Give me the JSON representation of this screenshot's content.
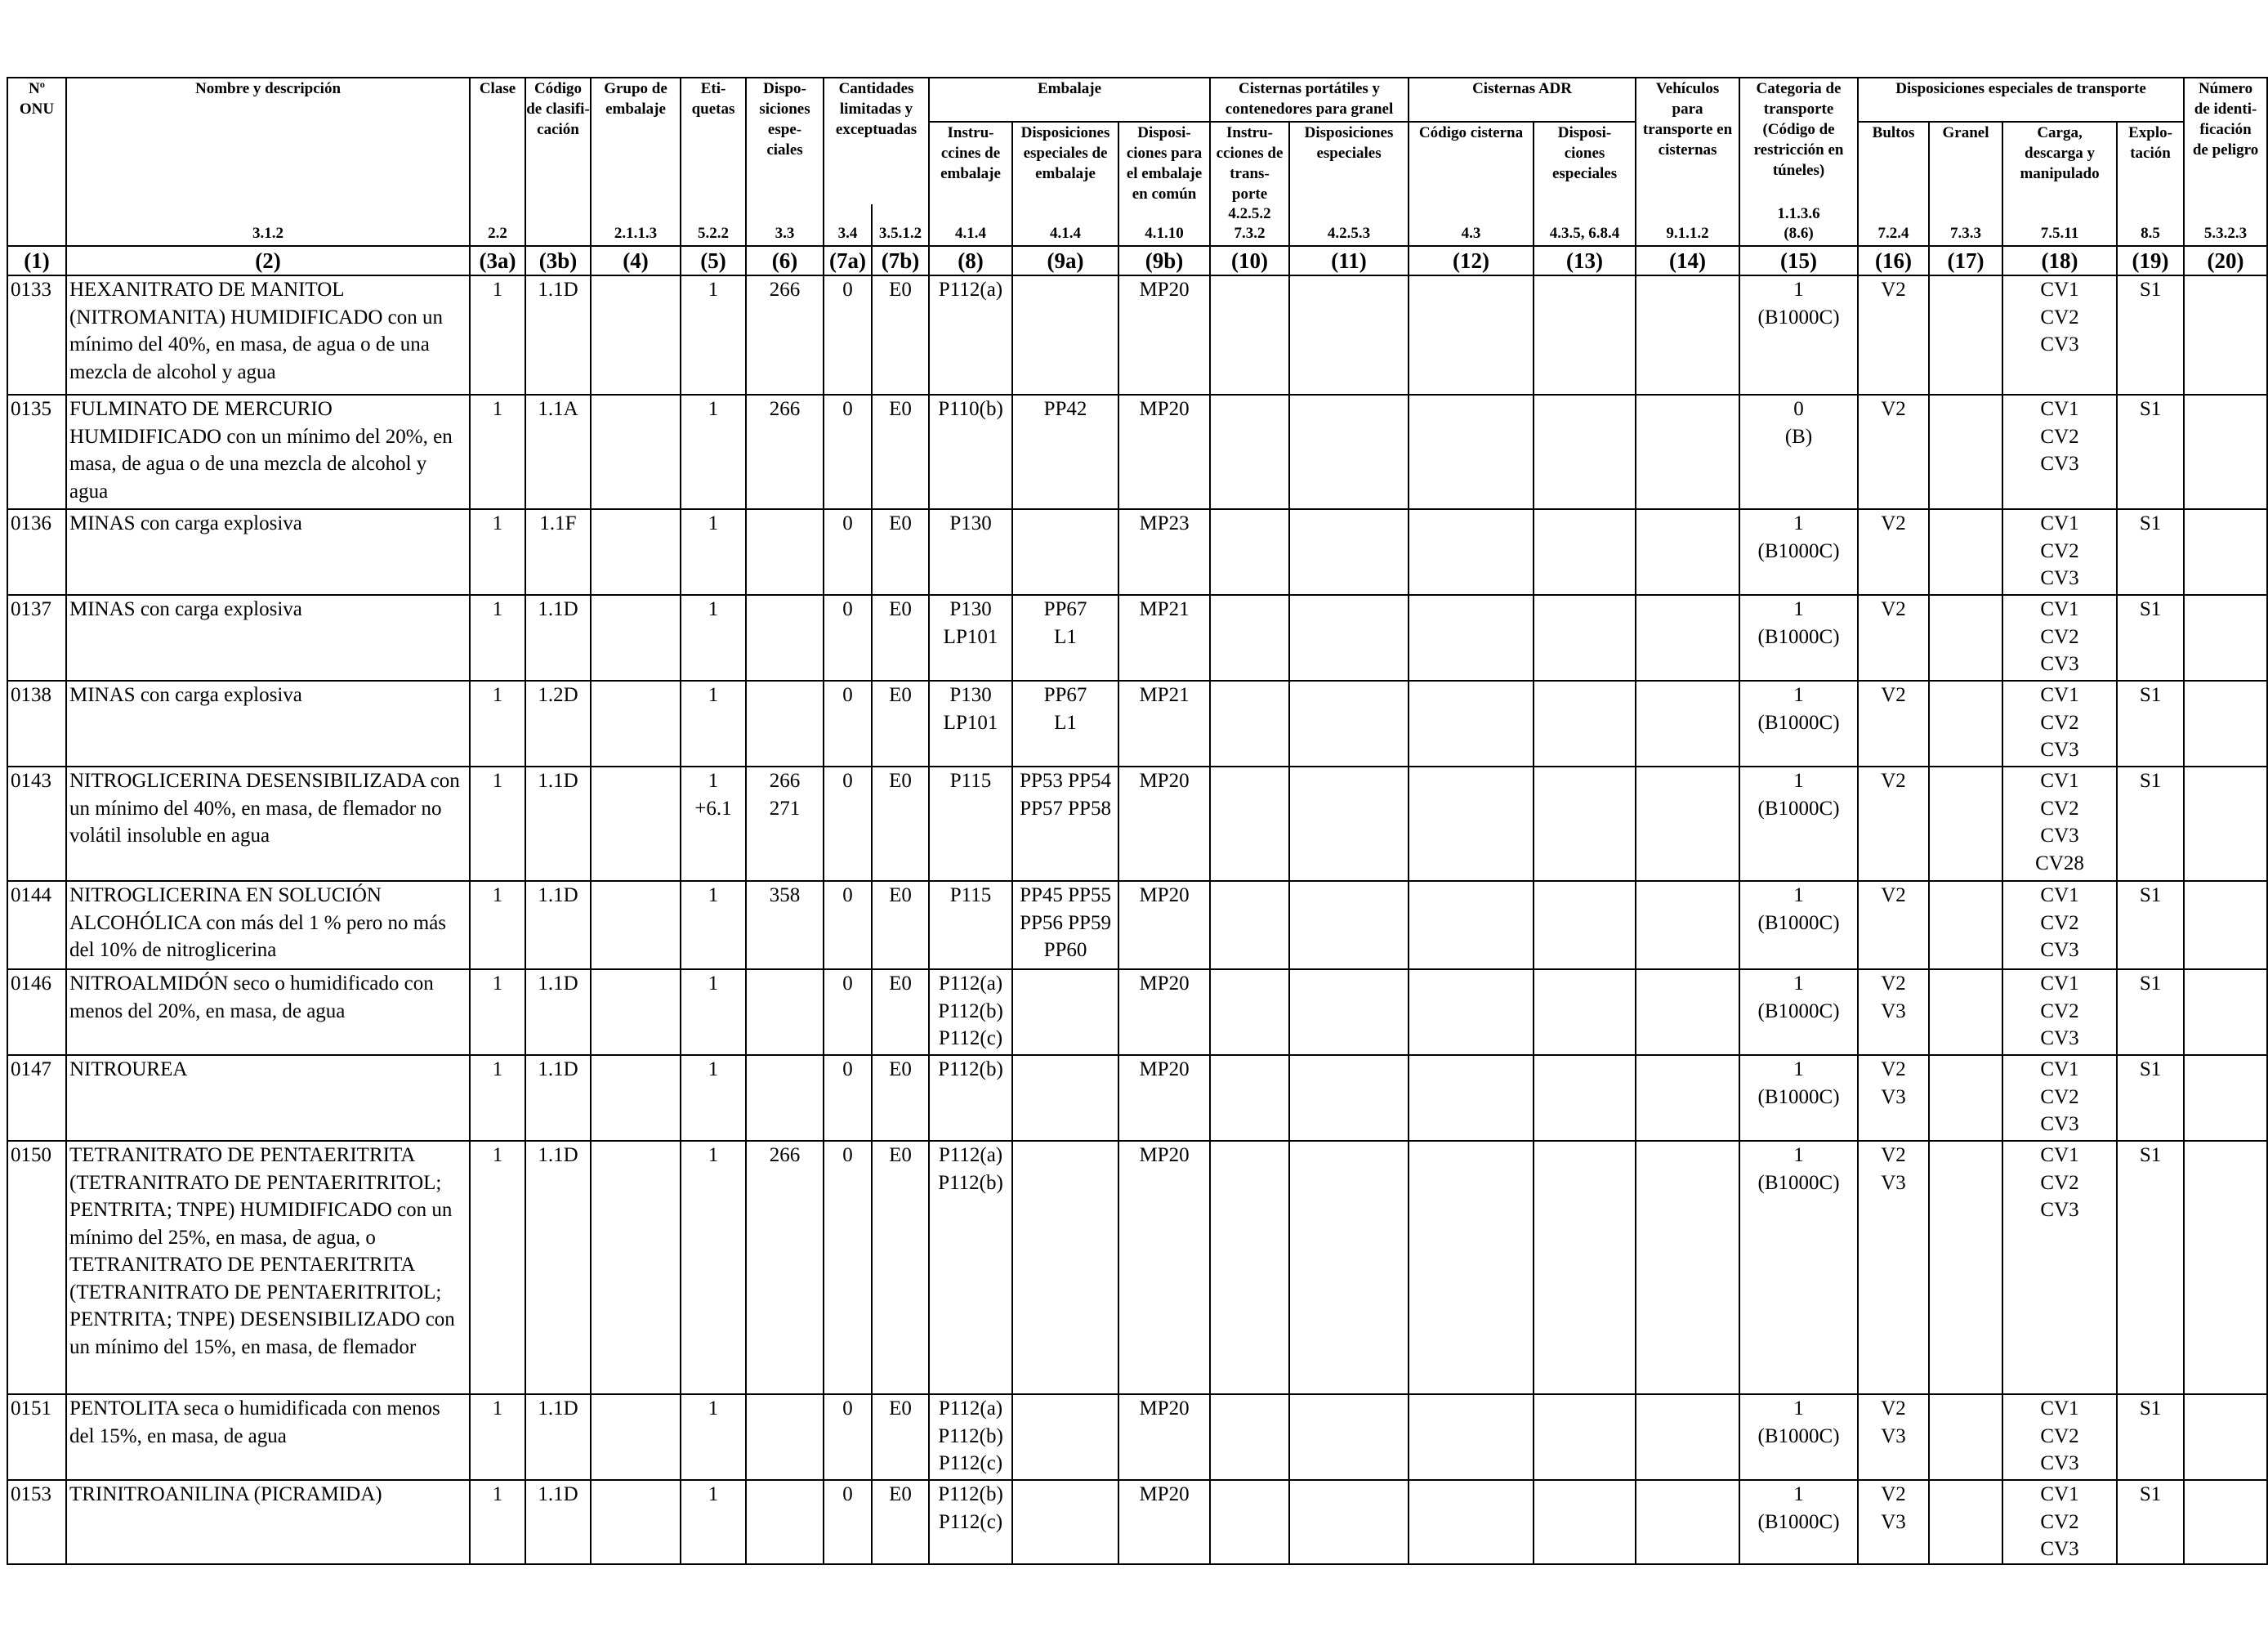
{
  "header": {
    "col1": "Nº\nONU",
    "col2": "Nombre y descripción",
    "col3a": "Clase",
    "col3b": "Código\nde clasifi-\ncación",
    "col4": "Grupo de\nembalaje",
    "col5": "Eti-\nquetas",
    "col6": "Dispo-\nsiciones\nespe-\nciales",
    "col7": "Cantidades\nlimitadas y\nexceptuadas",
    "embalaje": "Embalaje",
    "col8": "Instru-\nccines de\nembalaje",
    "col9a": "Disposiciones\nespeciales de\nembalaje",
    "col9b": "Disposi-\nciones para\nel embalaje\nen común",
    "cisternas_portatiles": "Cisternas portátiles y\ncontenedores para granel",
    "col10": "Instru-\ncciones de\ntrans-\nporte",
    "col11": "Disposiciones\nespeciales",
    "cisternas_adr": "Cisternas ADR",
    "col12": "Código cisterna",
    "col13": "Disposi-\nciones\nespeciales",
    "col14": "Vehículos\npara\ntransporte en\ncisternas",
    "col15": "Categoria de\ntransporte\n(Código de\nrestricción en\ntúneles)",
    "disp_transporte": "Disposiciones especiales de transporte",
    "col16": "Bultos",
    "col17": "Granel",
    "col18": "Carga,\ndescarga y\nmanipulado",
    "col19": "Explo-\ntación",
    "col20": "Número\nde identi-\nficación\nde peligro",
    "refs": {
      "r1": "",
      "r2": "3.1.2",
      "r3a": "2.2",
      "r3b": "",
      "r4": "2.1.1.3",
      "r5": "5.2.2",
      "r6": "3.3",
      "r7a": "3.4",
      "r7b": "3.5.1.2",
      "r8": "4.1.4",
      "r9a": "4.1.4",
      "r9b": "4.1.10",
      "r10": "4.2.5.2\n7.3.2",
      "r11": "4.2.5.3",
      "r12": "4.3",
      "r13": "4.3.5, 6.8.4",
      "r14": "9.1.1.2",
      "r15": "1.1.3.6\n(8.6)",
      "r16": "7.2.4",
      "r17": "7.3.3",
      "r18": "7.5.11",
      "r19": "8.5",
      "r20": "5.3.2.3"
    },
    "colnums": [
      "(1)",
      "(2)",
      "(3a)",
      "(3b)",
      "(4)",
      "(5)",
      "(6)",
      "(7a)",
      "(7b)",
      "(8)",
      "(9a)",
      "(9b)",
      "(10)",
      "(11)",
      "(12)",
      "(13)",
      "(14)",
      "(15)",
      "(16)",
      "(17)",
      "(18)",
      "(19)",
      "(20)"
    ]
  },
  "rows": [
    {
      "un": "0133",
      "name": "HEXANITRATO DE MANITOL (NITROMANITA) HUMIDIFICADO con un mínimo del 40%, en masa, de agua o de una mezcla de alcohol y agua",
      "clase": "1",
      "codigo": "1.1D",
      "grupo": "",
      "etiquetas": "1",
      "disp": "266",
      "c7a": "0",
      "c7b": "E0",
      "instr": "P112(a)",
      "dispemb": "",
      "comun": "MP20",
      "c10": "",
      "c11": "",
      "c12": "",
      "c13": "",
      "c14": "",
      "cat": "1\n(B1000C)",
      "bultos": "V2",
      "granel": "",
      "carga": "CV1\nCV2\nCV3",
      "explo": "S1",
      "peligro": ""
    },
    {
      "un": "0135",
      "name": "FULMINATO DE MERCURIO HUMIDIFICADO con un mínimo del 20%, en masa, de agua o de una mezcla de alcohol y agua",
      "clase": "1",
      "codigo": "1.1A",
      "grupo": "",
      "etiquetas": "1",
      "disp": "266",
      "c7a": "0",
      "c7b": "E0",
      "instr": "P110(b)",
      "dispemb": "PP42",
      "comun": "MP20",
      "c10": "",
      "c11": "",
      "c12": "",
      "c13": "",
      "c14": "",
      "cat": "0\n(B)",
      "bultos": "V2",
      "granel": "",
      "carga": "CV1\nCV2\nCV3",
      "explo": "S1",
      "peligro": ""
    },
    {
      "un": "0136",
      "name": "MINAS con carga explosiva",
      "clase": "1",
      "codigo": "1.1F",
      "grupo": "",
      "etiquetas": "1",
      "disp": "",
      "c7a": "0",
      "c7b": "E0",
      "instr": "P130",
      "dispemb": "",
      "comun": "MP23",
      "c10": "",
      "c11": "",
      "c12": "",
      "c13": "",
      "c14": "",
      "cat": "1\n(B1000C)",
      "bultos": "V2",
      "granel": "",
      "carga": "CV1\nCV2\nCV3",
      "explo": "S1",
      "peligro": ""
    },
    {
      "un": "0137",
      "name": "MINAS con carga explosiva",
      "clase": "1",
      "codigo": "1.1D",
      "grupo": "",
      "etiquetas": "1",
      "disp": "",
      "c7a": "0",
      "c7b": "E0",
      "instr": "P130\nLP101",
      "dispemb": "PP67\nL1",
      "comun": "MP21",
      "c10": "",
      "c11": "",
      "c12": "",
      "c13": "",
      "c14": "",
      "cat": "1\n(B1000C)",
      "bultos": "V2",
      "granel": "",
      "carga": "CV1\nCV2\nCV3",
      "explo": "S1",
      "peligro": ""
    },
    {
      "un": "0138",
      "name": "MINAS con carga explosiva",
      "clase": "1",
      "codigo": "1.2D",
      "grupo": "",
      "etiquetas": "1",
      "disp": "",
      "c7a": "0",
      "c7b": "E0",
      "instr": "P130\nLP101",
      "dispemb": "PP67\nL1",
      "comun": "MP21",
      "c10": "",
      "c11": "",
      "c12": "",
      "c13": "",
      "c14": "",
      "cat": "1\n(B1000C)",
      "bultos": "V2",
      "granel": "",
      "carga": "CV1\nCV2\nCV3",
      "explo": "S1",
      "peligro": ""
    },
    {
      "un": "0143",
      "name": "NITROGLICERINA DESENSIBILIZADA con un mínimo del 40%, en masa, de flemador no volátil insoluble en agua",
      "clase": "1",
      "codigo": "1.1D",
      "grupo": "",
      "etiquetas": "1\n+6.1",
      "disp": "266\n271",
      "c7a": "0",
      "c7b": "E0",
      "instr": "P115",
      "dispemb": "PP53 PP54\nPP57 PP58",
      "comun": "MP20",
      "c10": "",
      "c11": "",
      "c12": "",
      "c13": "",
      "c14": "",
      "cat": "1\n(B1000C)",
      "bultos": "V2",
      "granel": "",
      "carga": "CV1\nCV2\nCV3\nCV28",
      "explo": "S1",
      "peligro": ""
    },
    {
      "un": "0144",
      "name": "NITROGLICERINA EN SOLUCIÓN ALCOHÓLICA con más del 1 % pero no más del 10% de nitroglicerina",
      "clase": "1",
      "codigo": "1.1D",
      "grupo": "",
      "etiquetas": "1",
      "disp": "358",
      "c7a": "0",
      "c7b": "E0",
      "instr": "P115",
      "dispemb": "PP45 PP55\nPP56 PP59\nPP60",
      "comun": "MP20",
      "c10": "",
      "c11": "",
      "c12": "",
      "c13": "",
      "c14": "",
      "cat": "1\n(B1000C)",
      "bultos": "V2",
      "granel": "",
      "carga": "CV1\nCV2\nCV3",
      "explo": "S1",
      "peligro": ""
    },
    {
      "un": "0146",
      "name": "NITROALMIDÓN seco o humidificado con menos del 20%, en masa, de agua",
      "clase": "1",
      "codigo": "1.1D",
      "grupo": "",
      "etiquetas": "1",
      "disp": "",
      "c7a": "0",
      "c7b": "E0",
      "instr": "P112(a)\nP112(b)\nP112(c)",
      "dispemb": "",
      "comun": "MP20",
      "c10": "",
      "c11": "",
      "c12": "",
      "c13": "",
      "c14": "",
      "cat": "1\n(B1000C)",
      "bultos": "V2\nV3",
      "granel": "",
      "carga": "CV1\nCV2\nCV3",
      "explo": "S1",
      "peligro": ""
    },
    {
      "un": "0147",
      "name": "NITROUREA",
      "clase": "1",
      "codigo": "1.1D",
      "grupo": "",
      "etiquetas": "1",
      "disp": "",
      "c7a": "0",
      "c7b": "E0",
      "instr": "P112(b)",
      "dispemb": "",
      "comun": "MP20",
      "c10": "",
      "c11": "",
      "c12": "",
      "c13": "",
      "c14": "",
      "cat": "1\n(B1000C)",
      "bultos": "V2\nV3",
      "granel": "",
      "carga": "CV1\nCV2\nCV3",
      "explo": "S1",
      "peligro": ""
    },
    {
      "un": "0150",
      "name": "TETRANITRATO DE PENTAERITRITA (TETRANITRATO DE PENTAERITRITOL; PENTRITA; TNPE) HUMIDIFICADO con un mínimo del 25%, en masa, de agua, o TETRANITRATO DE PENTAERITRITA (TETRANITRATO DE PENTAERITRITOL; PENTRITA; TNPE) DESENSIBILIZADO con un mínimo del 15%, en masa, de flemador",
      "clase": "1",
      "codigo": "1.1D",
      "grupo": "",
      "etiquetas": "1",
      "disp": "266",
      "c7a": "0",
      "c7b": "E0",
      "instr": "P112(a)\nP112(b)",
      "dispemb": "",
      "comun": "MP20",
      "c10": "",
      "c11": "",
      "c12": "",
      "c13": "",
      "c14": "",
      "cat": "1\n(B1000C)",
      "bultos": "V2\nV3",
      "granel": "",
      "carga": "CV1\nCV2\nCV3",
      "explo": "S1",
      "peligro": ""
    },
    {
      "un": "0151",
      "name": "PENTOLITA seca o humidificada con menos del 15%, en masa, de agua",
      "clase": "1",
      "codigo": "1.1D",
      "grupo": "",
      "etiquetas": "1",
      "disp": "",
      "c7a": "0",
      "c7b": "E0",
      "instr": "P112(a)\nP112(b)\nP112(c)",
      "dispemb": "",
      "comun": "MP20",
      "c10": "",
      "c11": "",
      "c12": "",
      "c13": "",
      "c14": "",
      "cat": "1\n(B1000C)",
      "bultos": "V2\nV3",
      "granel": "",
      "carga": "CV1\nCV2\nCV3",
      "explo": "S1",
      "peligro": ""
    },
    {
      "un": "0153",
      "name": "TRINITROANILINA (PICRAMIDA)",
      "clase": "1",
      "codigo": "1.1D",
      "grupo": "",
      "etiquetas": "1",
      "disp": "",
      "c7a": "0",
      "c7b": "E0",
      "instr": "P112(b)\nP112(c)",
      "dispemb": "",
      "comun": "MP20",
      "c10": "",
      "c11": "",
      "c12": "",
      "c13": "",
      "c14": "",
      "cat": "1\n(B1000C)",
      "bultos": "V2\nV3",
      "granel": "",
      "carga": "CV1\nCV2\nCV3",
      "explo": "S1",
      "peligro": ""
    }
  ]
}
